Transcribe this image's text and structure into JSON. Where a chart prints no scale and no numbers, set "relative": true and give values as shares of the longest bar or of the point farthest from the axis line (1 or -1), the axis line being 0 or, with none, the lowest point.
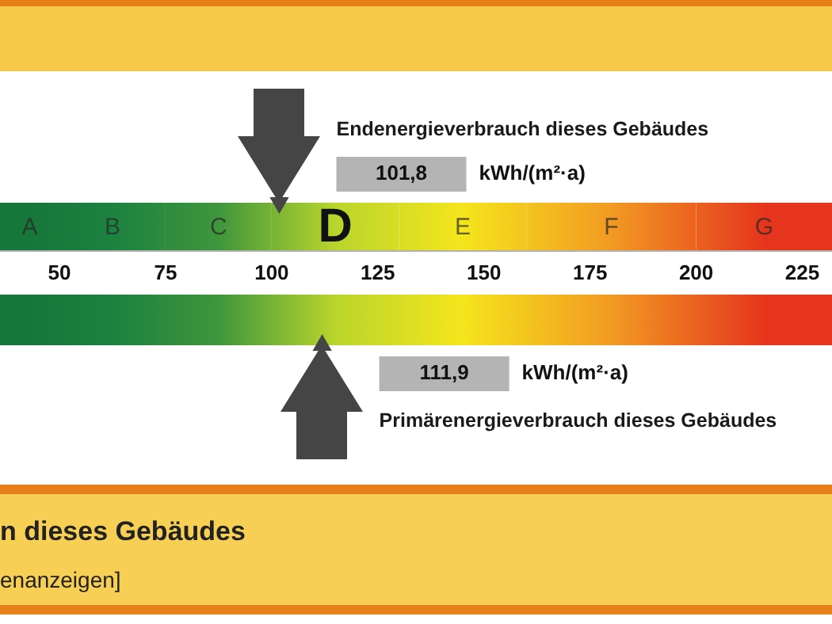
{
  "chart_data": {
    "type": "scatter",
    "relative": true,
    "x": [
      101.8,
      111.9
    ],
    "values": [
      0.5,
      -1
    ],
    "color": "#454545",
    "marker": "triangle",
    "xlim": [
      36,
      232
    ],
    "xticks": [
      50,
      75,
      100,
      125,
      150,
      175,
      200,
      225
    ],
    "bands": [
      {
        "axis": "x",
        "from": 36,
        "to": 50,
        "label": "A",
        "color": "#17763a"
      },
      {
        "axis": "x",
        "from": 50,
        "to": 75,
        "label": "B",
        "color": "#1c8240"
      },
      {
        "axis": "x",
        "from": 75,
        "to": 100,
        "label": "C",
        "color": "#3f963c"
      },
      {
        "axis": "x",
        "from": 100,
        "to": 130,
        "label": "D",
        "color": "#b9d52c"
      },
      {
        "axis": "x",
        "from": 130,
        "to": 160,
        "label": "E",
        "color": "#f5e51c"
      },
      {
        "axis": "x",
        "from": 160,
        "to": 200,
        "label": "F",
        "color": "#f29a22"
      },
      {
        "axis": "x",
        "from": 200,
        "to": 232,
        "label": "G",
        "color": "#e5361d"
      }
    ],
    "xlabel": "kWh/(m²·a)",
    "annotations": [
      "Endenergieverbrauch dieses Gebäudes",
      "101,8",
      "Primärenergieverbrauch dieses Gebäudes",
      "111,9",
      "n dieses Gebäudes",
      "enanzeigen]"
    ]
  }
}
